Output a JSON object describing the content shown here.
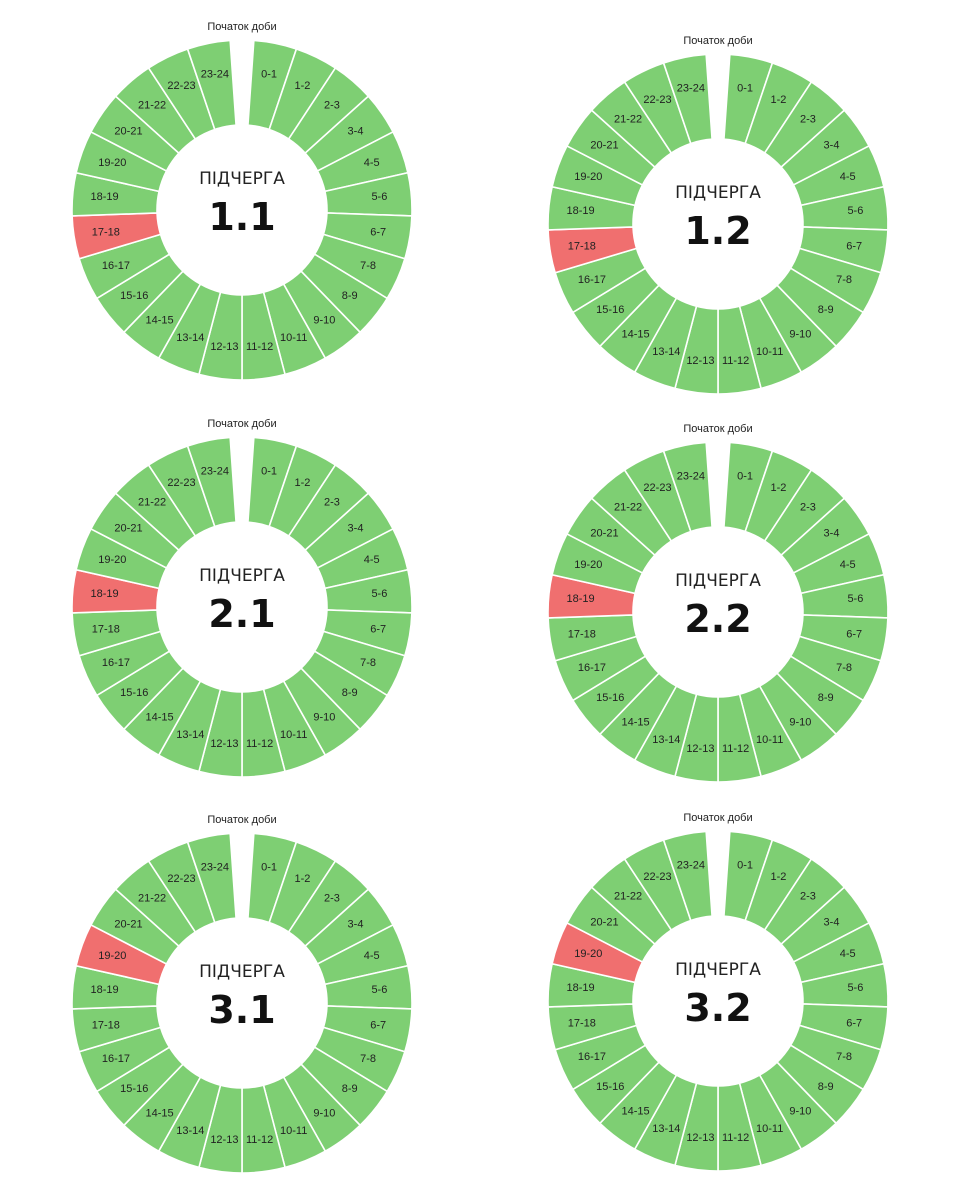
{
  "colors": {
    "on": "#7ecf73",
    "off": "#f06f6f",
    "gap": "#ffffff"
  },
  "start_label": "Початок доби",
  "center_prefix": "ПІДЧЕРГА",
  "hours": [
    "0-1",
    "1-2",
    "2-3",
    "3-4",
    "4-5",
    "5-6",
    "6-7",
    "7-8",
    "8-9",
    "9-10",
    "10-11",
    "11-12",
    "12-13",
    "13-14",
    "14-15",
    "15-16",
    "16-17",
    "17-18",
    "18-19",
    "19-20",
    "20-21",
    "21-22",
    "22-23",
    "23-24"
  ],
  "chart_data": [
    {
      "type": "pie",
      "subqueue": "1.1",
      "outage_hours": [
        "17-18"
      ]
    },
    {
      "type": "pie",
      "subqueue": "1.2",
      "outage_hours": [
        "17-18"
      ]
    },
    {
      "type": "pie",
      "subqueue": "2.1",
      "outage_hours": [
        "18-19"
      ]
    },
    {
      "type": "pie",
      "subqueue": "2.2",
      "outage_hours": [
        "18-19"
      ]
    },
    {
      "type": "pie",
      "subqueue": "3.1",
      "outage_hours": [
        "19-20"
      ]
    },
    {
      "type": "pie",
      "subqueue": "3.2",
      "outage_hours": [
        "19-20"
      ]
    }
  ]
}
